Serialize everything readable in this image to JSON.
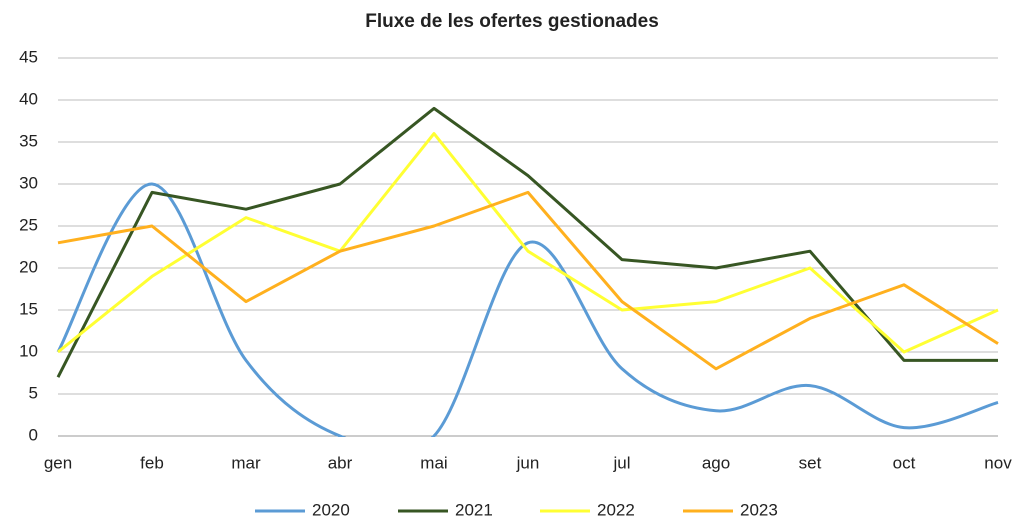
{
  "chart_data": {
    "type": "line",
    "title": "Fluxe de les ofertes gestionades",
    "categories": [
      "gen",
      "feb",
      "mar",
      "abr",
      "mai",
      "jun",
      "jul",
      "ago",
      "set",
      "oct",
      "nov"
    ],
    "series": [
      {
        "name": "2020",
        "color": "#5b9bd5",
        "smooth": true,
        "values": [
          10,
          30,
          9,
          0,
          0,
          23,
          8,
          3,
          6,
          1,
          4
        ]
      },
      {
        "name": "2021",
        "color": "#375623",
        "smooth": false,
        "values": [
          7,
          29,
          27,
          30,
          39,
          31,
          21,
          20,
          22,
          9,
          9
        ]
      },
      {
        "name": "2022",
        "color": "#ffff33",
        "smooth": false,
        "values": [
          10,
          19,
          26,
          22,
          36,
          22,
          15,
          16,
          20,
          10,
          15
        ]
      },
      {
        "name": "2023",
        "color": "#ffb01e",
        "smooth": false,
        "values": [
          23,
          25,
          16,
          22,
          25,
          29,
          16,
          8,
          14,
          18,
          11
        ]
      }
    ],
    "ylim": [
      0,
      45
    ],
    "yticks": [
      0,
      5,
      10,
      15,
      20,
      25,
      30,
      35,
      40,
      45
    ],
    "grid": true,
    "legend": "bottom"
  }
}
